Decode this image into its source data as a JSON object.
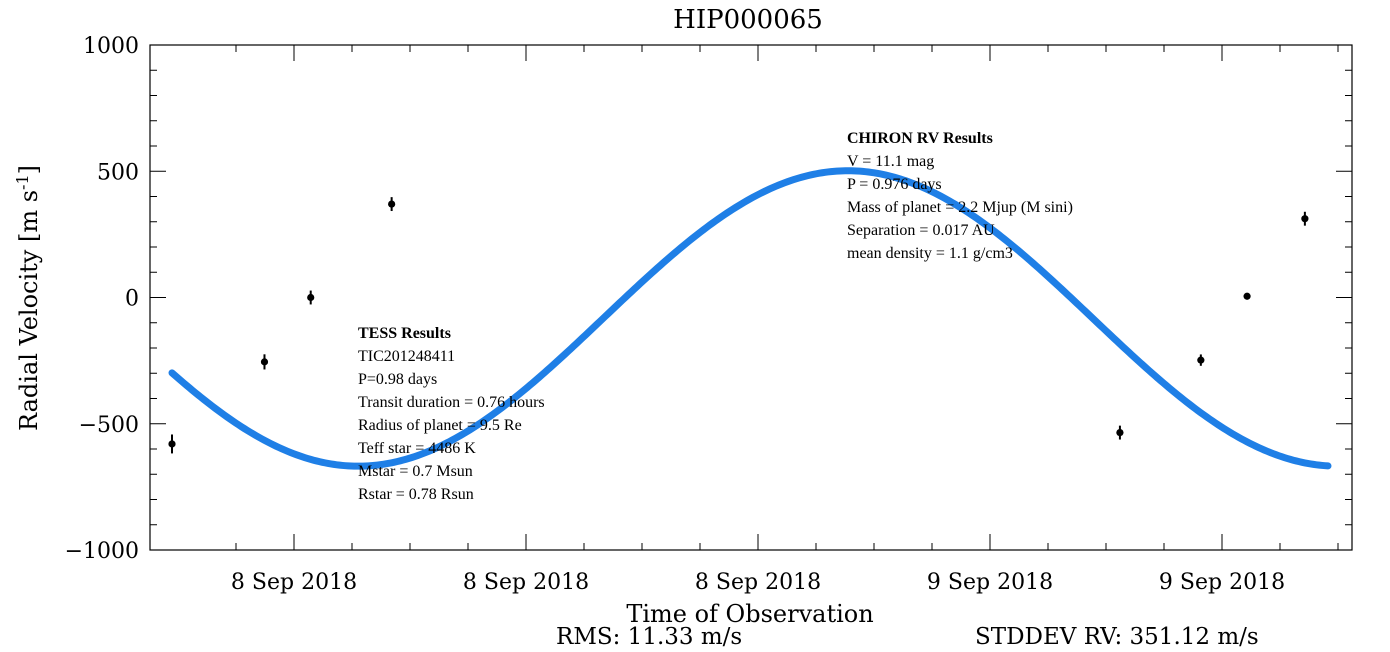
{
  "chart_data": {
    "type": "scatter",
    "title": "HIP000065",
    "xlabel": "Time of Observation",
    "ylabel": "Radial Velocity [m s",
    "ylabel_sup": "-1",
    "ylabel_close": "]",
    "ylim": [
      -1000,
      1000
    ],
    "y_ticks": [
      1000,
      500,
      0,
      -500,
      -1000
    ],
    "y_tick_labels": [
      "1000",
      "500",
      "0",
      "−500",
      "−1000"
    ],
    "x_tick_labels": [
      "8 Sep 2018",
      "8 Sep 2018",
      "8 Sep 2018",
      "9 Sep 2018",
      "9 Sep 2018"
    ],
    "grid": false,
    "model_curve": {
      "color": "#1f7fe6",
      "amplitude": 585,
      "offset": -83,
      "phase_fraction": 0.69,
      "x_range_fraction_of_period": 1.18
    },
    "series": [
      {
        "marker_color": "#000000",
        "x_phase": [
          0.0,
          0.08,
          0.12,
          0.19,
          0.82,
          0.89,
          0.93,
          0.98
        ],
        "values": [
          -580,
          -255,
          0,
          370,
          -535,
          -248,
          5,
          312
        ],
        "errors": [
          75,
          60,
          55,
          55,
          55,
          45,
          10,
          55
        ]
      }
    ]
  },
  "annotations": {
    "chiron": {
      "title": "CHIRON RV Results",
      "lines": [
        "V = 11.1 mag",
        "P = 0.976 days",
        "Mass of planet = 2.2 Mjup (M sini)",
        "Separation = 0.017 AU",
        "mean density = 1.1 g/cm3"
      ]
    },
    "tess": {
      "title": "TESS Results",
      "lines": [
        "TIC201248411",
        "P=0.98 days",
        "Transit duration = 0.76 hours",
        "Radius of planet = 9.5 Re",
        "Teff star = 4486 K",
        "Mstar = 0.7 Msun",
        "Rstar = 0.78 Rsun"
      ]
    }
  },
  "footer": {
    "rms": "RMS: 11.33 m/s",
    "stddev": "STDDEV RV: 351.12 m/s"
  }
}
